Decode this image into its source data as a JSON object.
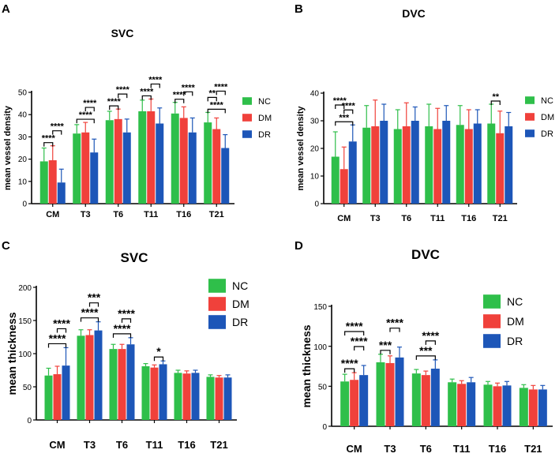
{
  "colors": {
    "NC": "#2fbf4a",
    "DM": "#f0413b",
    "DR": "#1d56b8"
  },
  "chart_data": [
    {
      "panel": "A",
      "type": "bar",
      "title": "SVC",
      "xlabel": "",
      "ylabel": "mean vessel density",
      "ylim": [
        0,
        50
      ],
      "yticks": [
        0,
        10,
        20,
        30,
        40,
        50
      ],
      "categories": [
        "CM",
        "T3",
        "T6",
        "T11",
        "T16",
        "T21"
      ],
      "series": [
        {
          "name": "NC",
          "values": [
            19,
            31.5,
            37.5,
            41.5,
            40.5,
            36.5
          ],
          "errors": [
            6,
            4,
            4,
            5,
            5,
            4.5
          ]
        },
        {
          "name": "DM",
          "values": [
            19.5,
            32,
            38,
            41.5,
            38.5,
            33.5
          ],
          "errors": [
            6.5,
            4.5,
            4.5,
            5.5,
            5,
            5
          ]
        },
        {
          "name": "DR",
          "values": [
            9.5,
            23,
            32,
            36,
            32,
            25
          ],
          "errors": [
            6,
            6,
            6,
            7,
            6.5,
            6
          ]
        }
      ],
      "significance": [
        {
          "label": "****",
          "from": 0,
          "to": 1,
          "cat": 0
        },
        {
          "label": "****",
          "from": 1,
          "to": 2,
          "cat": 0
        },
        {
          "label": "****",
          "from": 0,
          "to": 2,
          "cat": 1
        },
        {
          "label": "****",
          "from": 1,
          "to": 2,
          "cat": 1
        },
        {
          "label": "****",
          "from": 0,
          "to": 1,
          "cat": 2
        },
        {
          "label": "****",
          "from": 1,
          "to": 2,
          "cat": 2
        },
        {
          "label": "****",
          "from": 0,
          "to": 1,
          "cat": 3
        },
        {
          "label": "****",
          "from": 1,
          "to": 2,
          "cat": 3
        },
        {
          "label": "****",
          "from": 0,
          "to": 1,
          "cat": 4
        },
        {
          "label": "****",
          "from": 1,
          "to": 2,
          "cat": 4
        },
        {
          "label": "****",
          "from": 0,
          "to": 2,
          "cat": 5
        },
        {
          "label": "**",
          "from": 0,
          "to": 1,
          "cat": 5
        },
        {
          "label": "****",
          "from": 1,
          "to": 2,
          "cat": 5
        }
      ],
      "legend": [
        "NC",
        "DM",
        "DR"
      ]
    },
    {
      "panel": "B",
      "type": "bar",
      "title": "DVC",
      "xlabel": "",
      "ylabel": "mean vessel density",
      "ylim": [
        0,
        40
      ],
      "yticks": [
        0,
        10,
        20,
        30,
        40
      ],
      "categories": [
        "CM",
        "T3",
        "T6",
        "T11",
        "T16",
        "T21"
      ],
      "series": [
        {
          "name": "NC",
          "values": [
            17,
            27.5,
            27,
            28,
            28.5,
            29
          ],
          "errors": [
            9,
            8,
            7,
            8,
            7,
            7
          ]
        },
        {
          "name": "DM",
          "values": [
            12.5,
            28,
            28,
            27,
            27,
            25.5
          ],
          "errors": [
            8,
            9.5,
            8.5,
            7.5,
            7,
            8
          ]
        },
        {
          "name": "DR",
          "values": [
            22.5,
            30,
            30,
            30,
            29,
            28
          ],
          "errors": [
            6,
            6,
            5,
            5.5,
            5,
            5
          ]
        }
      ],
      "significance": [
        {
          "label": "***",
          "from": 0,
          "to": 2,
          "cat": 0
        },
        {
          "label": "****",
          "from": 1,
          "to": 2,
          "cat": 0
        },
        {
          "label": "****",
          "from": 0,
          "to": 1,
          "cat": 0
        },
        {
          "label": "**",
          "from": 0,
          "to": 1,
          "cat": 5
        }
      ],
      "legend": [
        "NC",
        "DM",
        "DR"
      ]
    },
    {
      "panel": "C",
      "type": "bar",
      "title": "SVC",
      "xlabel": "",
      "ylabel": "mean thickness",
      "ylim": [
        0,
        200
      ],
      "yticks": [
        0,
        50,
        100,
        150,
        200
      ],
      "categories": [
        "CM",
        "T3",
        "T6",
        "T11",
        "T16",
        "T21"
      ],
      "series": [
        {
          "name": "NC",
          "values": [
            67,
            127,
            107,
            81,
            71,
            65
          ],
          "errors": [
            11,
            9,
            7,
            4,
            4,
            3
          ]
        },
        {
          "name": "DM",
          "values": [
            69,
            128,
            107,
            79,
            70,
            64
          ],
          "errors": [
            12,
            8,
            7,
            4,
            4,
            3
          ]
        },
        {
          "name": "DR",
          "values": [
            82,
            135,
            114,
            84,
            71,
            64
          ],
          "errors": [
            27,
            13,
            10,
            5,
            4,
            4
          ]
        }
      ],
      "significance": [
        {
          "label": "****",
          "from": 0,
          "to": 2,
          "cat": 0
        },
        {
          "label": "****",
          "from": 1,
          "to": 2,
          "cat": 0
        },
        {
          "label": "****",
          "from": 0,
          "to": 2,
          "cat": 1
        },
        {
          "label": "***",
          "from": 1,
          "to": 2,
          "cat": 1
        },
        {
          "label": "****",
          "from": 0,
          "to": 2,
          "cat": 2
        },
        {
          "label": "****",
          "from": 1,
          "to": 2,
          "cat": 2
        },
        {
          "label": "*",
          "from": 1,
          "to": 2,
          "cat": 3
        }
      ],
      "legend": [
        "NC",
        "DM",
        "DR"
      ]
    },
    {
      "panel": "D",
      "type": "bar",
      "title": "DVC",
      "xlabel": "",
      "ylabel": "mean thickness",
      "ylim": [
        0,
        150
      ],
      "yticks": [
        0,
        50,
        100,
        150
      ],
      "categories": [
        "CM",
        "T3",
        "T6",
        "T11",
        "T16",
        "T21"
      ],
      "series": [
        {
          "name": "NC",
          "values": [
            56,
            80,
            66,
            55,
            52,
            48
          ],
          "errors": [
            9,
            10,
            5,
            4,
            4,
            4
          ]
        },
        {
          "name": "DM",
          "values": [
            58,
            79,
            64,
            53,
            50,
            46
          ],
          "errors": [
            9,
            9,
            5,
            4,
            4,
            5
          ]
        },
        {
          "name": "DR",
          "values": [
            64,
            86,
            72,
            55,
            51,
            46
          ],
          "errors": [
            12,
            13,
            11,
            6,
            5,
            5
          ]
        }
      ],
      "significance": [
        {
          "label": "****",
          "from": 0,
          "to": 1,
          "cat": 0
        },
        {
          "label": "****",
          "from": 1,
          "to": 2,
          "cat": 0
        },
        {
          "label": "****",
          "from": 0,
          "to": 2,
          "cat": 0
        },
        {
          "label": "***",
          "from": 0,
          "to": 1,
          "cat": 1
        },
        {
          "label": "****",
          "from": 1,
          "to": 2,
          "cat": 1
        },
        {
          "label": "***",
          "from": 0,
          "to": 2,
          "cat": 2
        },
        {
          "label": "****",
          "from": 1,
          "to": 2,
          "cat": 2
        }
      ],
      "legend": [
        "NC",
        "DM",
        "DR"
      ]
    }
  ]
}
